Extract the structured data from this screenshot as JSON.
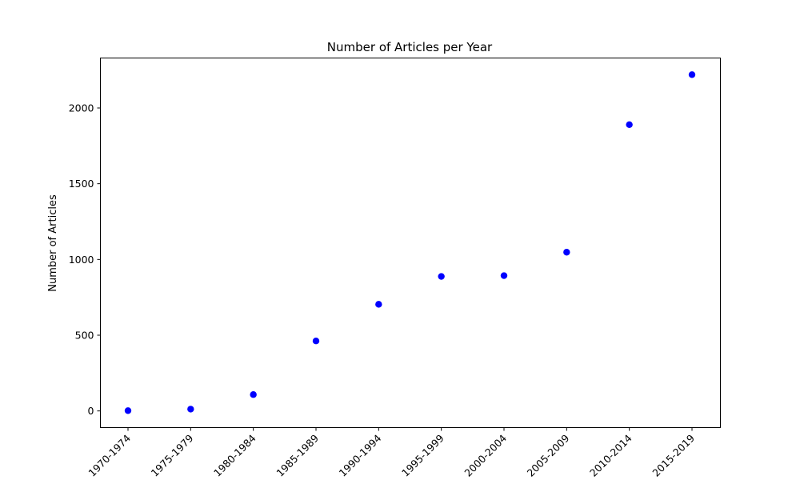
{
  "chart_data": {
    "type": "scatter",
    "title": "Number of Articles per Year",
    "xlabel": "",
    "ylabel": "Number of Articles",
    "categories": [
      "1970-1974",
      "1975-1979",
      "1980-1984",
      "1985-1989",
      "1990-1994",
      "1995-1999",
      "2000-2004",
      "2005-2009",
      "2010-2014",
      "2015-2019"
    ],
    "values": [
      2,
      12,
      108,
      462,
      704,
      888,
      893,
      1048,
      1890,
      2220
    ],
    "ylim": [
      -110,
      2330
    ],
    "yticks": [
      0,
      500,
      1000,
      1500,
      2000
    ],
    "marker_color": "#0000ff",
    "grid": false
  }
}
